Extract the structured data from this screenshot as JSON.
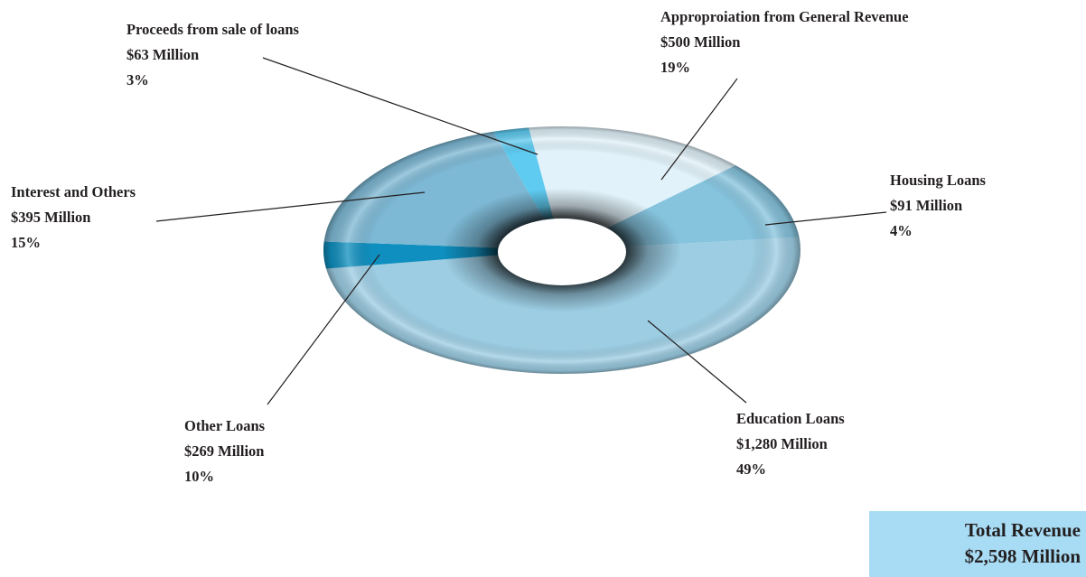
{
  "chart_data": {
    "type": "pie",
    "style": "3d-donut",
    "slices": [
      {
        "label": "Education Loans",
        "amount": "$1,280 Million",
        "percent": "49%",
        "value": 1280,
        "color": "#9ccde3"
      },
      {
        "label": "Housing Loans",
        "amount": "$91 Million",
        "percent": "4%",
        "value": 91,
        "color": "#0f8fbf"
      },
      {
        "label": "Approproiation from General Revenue",
        "amount": "$500 Million",
        "percent": "19%",
        "value": 500,
        "color": "#7db8d4"
      },
      {
        "label": "Proceeds from sale of loans",
        "amount": "$63 Million",
        "percent": "3%",
        "value": 63,
        "color": "#5fcbf0"
      },
      {
        "label": "Interest and Others",
        "amount": "$395 Million",
        "percent": "15%",
        "value": 395,
        "color": "#e1f2fa"
      },
      {
        "label": "Other Loans",
        "amount": "$269 Million",
        "percent": "10%",
        "value": 269,
        "color": "#86c4de"
      }
    ],
    "total": {
      "title": "Total Revenue",
      "value": "$2,598 Million",
      "box_color": "#a8dcf5"
    }
  }
}
